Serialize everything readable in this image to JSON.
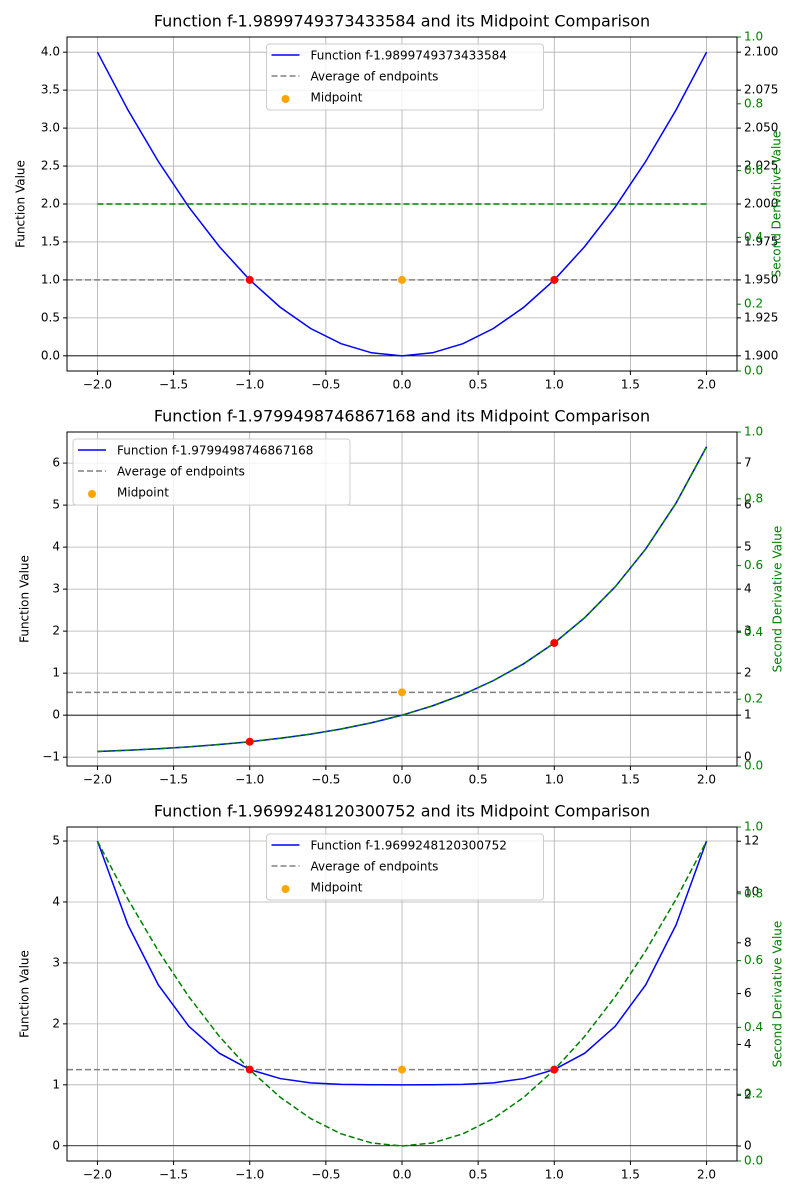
{
  "chart_data": [
    {
      "type": "line",
      "title": "Function f-1.9899749373433584 and its Midpoint Comparison",
      "ylabel": "Function Value",
      "y2label": "Second Derivative Value",
      "legend": "upper center",
      "grid": true,
      "x": [
        -2,
        -1.8,
        -1.6,
        -1.4,
        -1.2,
        -1,
        -0.8,
        -0.6,
        -0.4,
        -0.2,
        0,
        0.2,
        0.4,
        0.6,
        0.8,
        1,
        1.2,
        1.4,
        1.6,
        1.8,
        2
      ],
      "series": [
        {
          "name": "Function f-1.9899749373433584",
          "color": "#0000ff",
          "values": [
            4,
            3.24,
            2.56,
            1.96,
            1.44,
            1,
            0.64,
            0.36,
            0.16,
            0.04,
            0,
            0.04,
            0.16,
            0.36,
            0.64,
            1,
            1.44,
            1.96,
            2.56,
            3.24,
            4
          ]
        },
        {
          "color": "#008000",
          "axis": "y2",
          "dashed": true,
          "values": [
            2,
            2,
            2,
            2,
            2,
            2,
            2,
            2,
            2,
            2,
            2,
            2,
            2,
            2,
            2,
            2,
            2,
            2,
            2,
            2,
            2
          ]
        }
      ],
      "average": {
        "name": "Average of endpoints",
        "color": "#808080",
        "value": 1
      },
      "midpoint": {
        "name": "Midpoint",
        "color": "#ffa500",
        "x": 0,
        "value": 1
      },
      "points": {
        "color": "#ff0000",
        "x": [
          -1,
          1
        ],
        "values": [
          1,
          1
        ]
      },
      "xlim": [
        -2.2,
        2.2
      ],
      "xticks": [
        {
          "value": -2,
          "label": "−2.0"
        },
        {
          "value": -1.5,
          "label": "−1.5"
        },
        {
          "value": -1,
          "label": "−1.0"
        },
        {
          "value": -0.5,
          "label": "−0.5"
        },
        {
          "value": 0,
          "label": "0.0"
        },
        0.5,
        {
          "value": 1,
          "label": "1.0"
        },
        1.5,
        {
          "value": 2,
          "label": "2.0"
        }
      ],
      "ylim": [
        -0.2,
        4.2
      ],
      "yticks": [
        {
          "value": 0,
          "label": "0.0"
        },
        0.5,
        {
          "value": 1,
          "label": "1.0"
        },
        1.5,
        {
          "value": 2,
          "label": "2.0"
        },
        2.5,
        {
          "value": 3,
          "label": "3.0"
        },
        3.5,
        {
          "value": 4,
          "label": "4.0"
        }
      ],
      "y2lim": [
        1.89,
        2.11
      ],
      "y2ticks": [
        {
          "value": 1.9,
          "label": "1.900"
        },
        {
          "value": 1.925,
          "label": "1.925"
        },
        {
          "value": 1.95,
          "label": "1.950"
        },
        {
          "value": 1.975,
          "label": "1.975"
        },
        {
          "value": 2,
          "label": "2.000"
        },
        {
          "value": 2.025,
          "label": "2.025"
        },
        {
          "value": 2.05,
          "label": "2.050"
        },
        {
          "value": 2.075,
          "label": "2.075"
        },
        {
          "value": 2.1,
          "label": "2.100"
        }
      ],
      "y3lim": [
        0,
        1
      ],
      "y3color": "#008000",
      "y3ticks": [
        {
          "value": 0,
          "label": "0.0"
        },
        0.2,
        0.4,
        0.6,
        0.8,
        {
          "value": 1,
          "label": "1.0"
        }
      ]
    },
    {
      "type": "line",
      "title": "Function f-1.9799498746867168 and its Midpoint Comparison",
      "ylabel": "Function Value",
      "y2label": "Second Derivative Value",
      "legend": "upper left",
      "grid": true,
      "x": [
        -2,
        -1.8,
        -1.6,
        -1.4,
        -1.2,
        -1,
        -0.8,
        -0.6,
        -0.4,
        -0.2,
        0,
        0.2,
        0.4,
        0.6,
        0.8,
        1,
        1.2,
        1.4,
        1.6,
        1.8,
        2
      ],
      "series": [
        {
          "name": "Function f-1.9799498746867168",
          "color": "#0000ff",
          "values": [
            -0.8647,
            -0.8347,
            -0.7981,
            -0.7534,
            -0.6988,
            -0.6321,
            -0.5507,
            -0.4512,
            -0.3297,
            -0.1813,
            0,
            0.2214,
            0.4918,
            0.8221,
            1.2255,
            1.7183,
            2.3201,
            3.0552,
            3.953,
            5.0496,
            6.3891
          ]
        },
        {
          "color": "#008000",
          "axis": "y2",
          "dashed": true,
          "values": [
            0.1353,
            0.1653,
            0.2019,
            0.2466,
            0.3012,
            0.3679,
            0.4493,
            0.5488,
            0.6703,
            0.8187,
            1,
            1.2214,
            1.4918,
            1.8221,
            2.2255,
            2.7183,
            3.3201,
            4.0552,
            4.953,
            6.0496,
            7.3891
          ]
        }
      ],
      "average": {
        "name": "Average of endpoints",
        "color": "#808080",
        "value": 0.5431
      },
      "midpoint": {
        "name": "Midpoint",
        "color": "#ffa500",
        "x": 0,
        "value": 0.5431
      },
      "points": {
        "color": "#ff0000",
        "x": [
          -1,
          1
        ],
        "values": [
          -0.6321,
          1.7183
        ]
      },
      "xlim": [
        -2.2,
        2.2
      ],
      "xticks": [
        {
          "value": -2,
          "label": "−2.0"
        },
        {
          "value": -1.5,
          "label": "−1.5"
        },
        {
          "value": -1,
          "label": "−1.0"
        },
        {
          "value": -0.5,
          "label": "−0.5"
        },
        {
          "value": 0,
          "label": "0.0"
        },
        0.5,
        {
          "value": 1,
          "label": "1.0"
        },
        1.5,
        {
          "value": 2,
          "label": "2.0"
        }
      ],
      "ylim": [
        -1.21,
        6.74
      ],
      "yticks": [
        {
          "value": -1,
          "label": "−1"
        },
        0,
        1,
        2,
        3,
        4,
        5,
        6
      ],
      "y2lim": [
        -0.21,
        7.74
      ],
      "y2ticks": [
        0,
        1,
        2,
        3,
        4,
        5,
        6,
        7
      ],
      "y3lim": [
        0,
        1
      ],
      "y3color": "#008000",
      "y3ticks": [
        {
          "value": 0,
          "label": "0.0"
        },
        0.2,
        0.4,
        0.6,
        0.8,
        {
          "value": 1,
          "label": "1.0"
        }
      ]
    },
    {
      "type": "line",
      "title": "Function f-1.9699248120300752 and its Midpoint Comparison",
      "ylabel": "Function Value",
      "y2label": "Second Derivative Value",
      "legend": "upper center",
      "grid": true,
      "x": [
        -2,
        -1.8,
        -1.6,
        -1.4,
        -1.2,
        -1,
        -0.8,
        -0.6,
        -0.4,
        -0.2,
        0,
        0.2,
        0.4,
        0.6,
        0.8,
        1,
        1.2,
        1.4,
        1.6,
        1.8,
        2
      ],
      "series": [
        {
          "name": "Function f-1.9699248120300752",
          "color": "#0000ff",
          "values": [
            5,
            3.6244,
            2.6384,
            1.9604,
            1.5184,
            1.25,
            1.1024,
            1.0324,
            1.0064,
            1.0004,
            1,
            1.0004,
            1.0064,
            1.0324,
            1.1024,
            1.25,
            1.5184,
            1.9604,
            2.6384,
            3.6244,
            5
          ]
        },
        {
          "color": "#008000",
          "axis": "y2",
          "dashed": true,
          "values": [
            12,
            9.72,
            7.68,
            5.88,
            4.32,
            3,
            1.92,
            1.08,
            0.48,
            0.12,
            0,
            0.12,
            0.48,
            1.08,
            1.92,
            3,
            4.32,
            5.88,
            7.68,
            9.72,
            12
          ]
        }
      ],
      "average": {
        "name": "Average of endpoints",
        "color": "#808080",
        "value": 1.25
      },
      "midpoint": {
        "name": "Midpoint",
        "color": "#ffa500",
        "x": 0,
        "value": 1.25
      },
      "points": {
        "color": "#ff0000",
        "x": [
          -1,
          1
        ],
        "values": [
          1.25,
          1.25
        ]
      },
      "xlim": [
        -2.2,
        2.2
      ],
      "xticks": [
        {
          "value": -2,
          "label": "−2.0"
        },
        {
          "value": -1.5,
          "label": "−1.5"
        },
        {
          "value": -1,
          "label": "−1.0"
        },
        {
          "value": -0.5,
          "label": "−0.5"
        },
        {
          "value": 0,
          "label": "0.0"
        },
        0.5,
        {
          "value": 1,
          "label": "1.0"
        },
        1.5,
        {
          "value": 2,
          "label": "2.0"
        }
      ],
      "ylim": [
        -0.25,
        5.23
      ],
      "yticks": [
        0,
        1,
        2,
        3,
        4,
        5
      ],
      "y2lim": [
        -0.59,
        12.56
      ],
      "y2ticks": [
        0,
        2,
        4,
        6,
        8,
        10,
        12
      ],
      "y3lim": [
        0,
        1
      ],
      "y3color": "#008000",
      "y3ticks": [
        {
          "value": 0,
          "label": "0.0"
        },
        0.2,
        0.4,
        0.6,
        0.8,
        {
          "value": 1,
          "label": "1.0"
        }
      ]
    }
  ]
}
